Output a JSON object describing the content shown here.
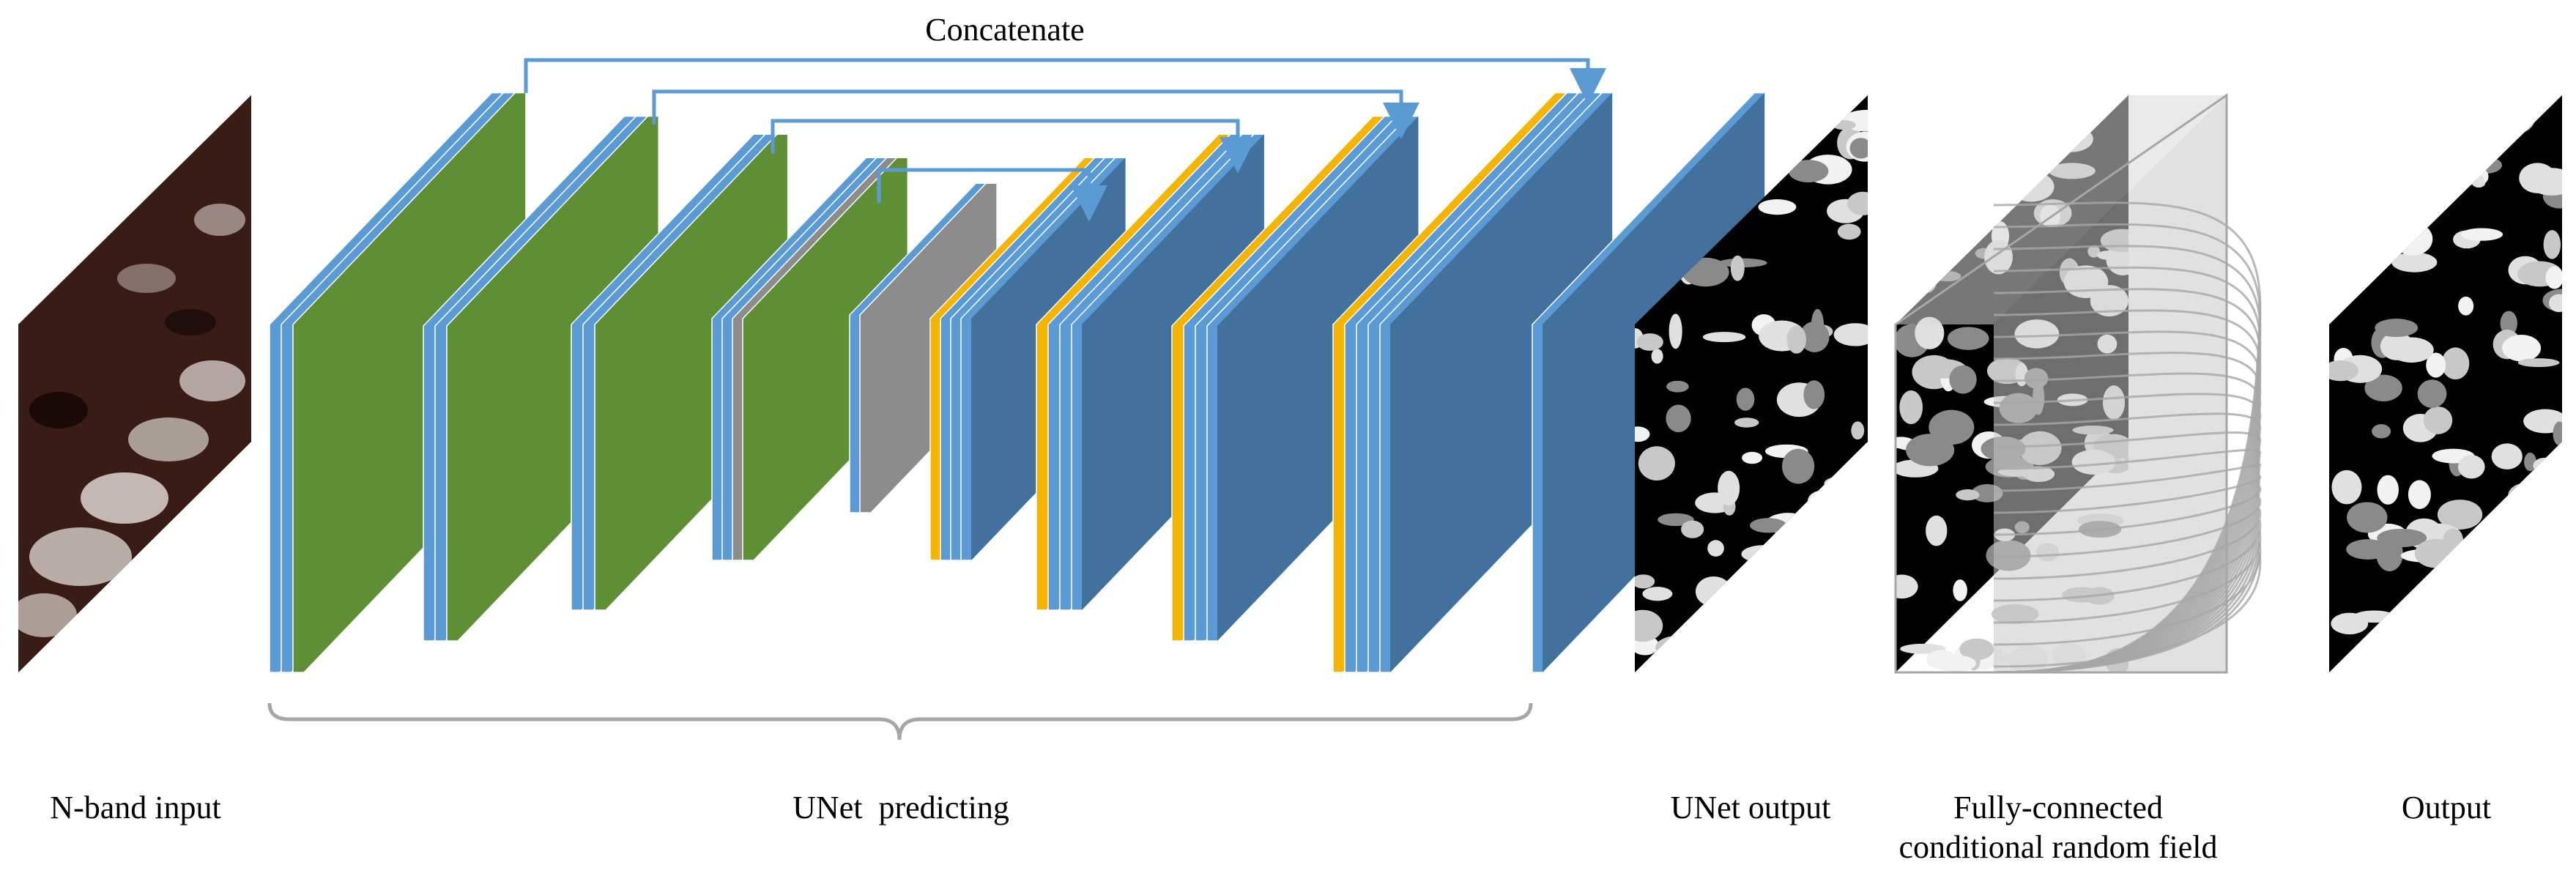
{
  "labels": {
    "concatenate": "Concatenate",
    "input": "N-band input",
    "unet_predicting": "UNet  predicting",
    "unet_output": "UNet output",
    "crf_line1": "Fully-connected",
    "crf_line2": "conditional random field",
    "output": "Output"
  },
  "colors": {
    "blue": "#5B9BD5",
    "blue_dark": "#41719C",
    "green": "#5F8F34",
    "gray": "#8C8C8C",
    "yellow": "#F4B400",
    "arrow": "#5B9BD5",
    "brace": "#A6A6A6",
    "crf_lines": "#A6A6A6"
  }
}
